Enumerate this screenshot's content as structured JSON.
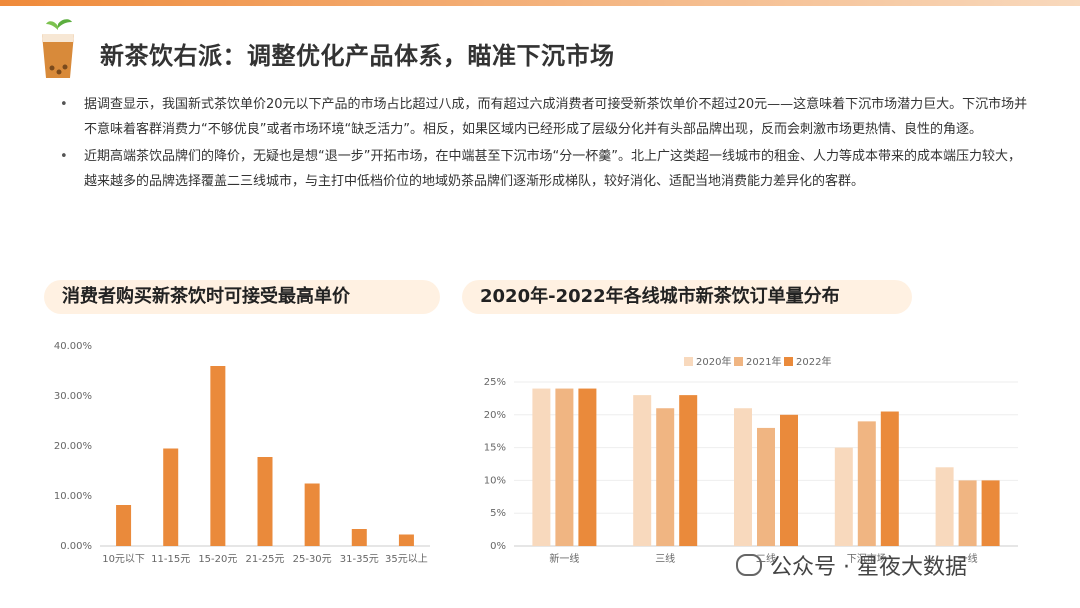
{
  "colors": {
    "accent": "#ef8a3a",
    "light": "#f8d9bd",
    "mid": "#f0b582",
    "dark": "#ea8a3b",
    "pill_bg": "#fff1e2"
  },
  "title": "新茶饮右派：调整优化产品体系，瞄准下沉市场",
  "bullets": [
    "据调查显示，我国新式茶饮单价20元以下产品的市场占比超过八成，而有超过六成消费者可接受新茶饮单价不超过20元——这意味着下沉市场潜力巨大。下沉市场并不意味着客群消费力“不够优良”或者市场环境“缺乏活力”。相反，如果区域内已经形成了层级分化并有头部品牌出现，反而会刺激市场更热情、良性的角逐。",
    "近期高端茶饮品牌们的降价，无疑也是想“退一步”开拓市场，在中端甚至下沉市场“分一杯羹”。北上广这类超一线城市的租金、人力等成本带来的成本端压力较大，越来越多的品牌选择覆盖二三线城市，与主打中低档价位的地域奶茶品牌们逐渐形成梯队，较好消化、适配当地消费能力差异化的客群。"
  ],
  "watermark": "公众号 · 星夜大数据",
  "chart_data": [
    {
      "type": "bar",
      "title": "消费者购买新茶饮时可接受最高单价",
      "categories": [
        "10元以下",
        "11-15元",
        "15-20元",
        "21-25元",
        "25-30元",
        "31-35元",
        "35元以上"
      ],
      "values": [
        8.2,
        19.5,
        36.0,
        17.8,
        12.5,
        3.4,
        2.3
      ],
      "ylim": [
        0,
        40
      ],
      "yticks": [
        "0.00%",
        "10.00%",
        "20.00%",
        "30.00%",
        "40.00%"
      ],
      "grid": false
    },
    {
      "type": "bar",
      "title": "2020年-2022年各线城市新茶饮订单量分布",
      "categories": [
        "新一线",
        "三线",
        "二线",
        "下沉市场",
        "一线"
      ],
      "series": [
        {
          "name": "2020年",
          "values": [
            24,
            23,
            21,
            15,
            12
          ]
        },
        {
          "name": "2021年",
          "values": [
            24,
            21,
            18,
            19,
            10
          ]
        },
        {
          "name": "2022年",
          "values": [
            24,
            23,
            20,
            20.5,
            10
          ]
        }
      ],
      "ylim": [
        0,
        25
      ],
      "yticks": [
        "0%",
        "5%",
        "10%",
        "15%",
        "20%",
        "25%"
      ],
      "legend": "top",
      "grid": true
    }
  ]
}
